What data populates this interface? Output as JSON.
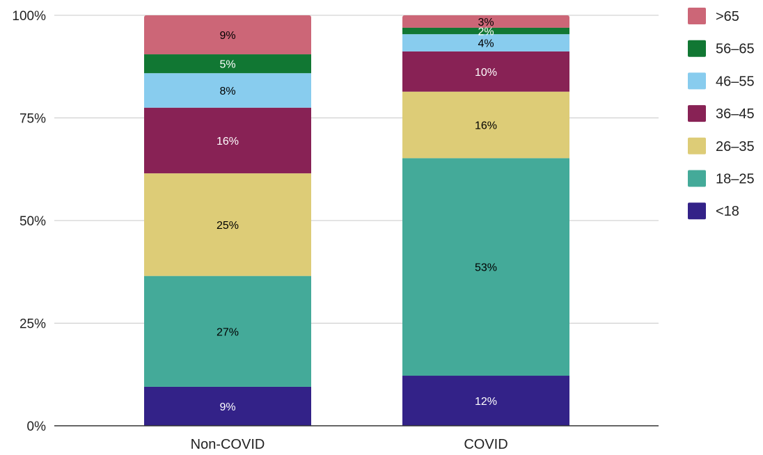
{
  "chart_data": {
    "type": "bar",
    "stacked": true,
    "normalized": true,
    "title": "",
    "xlabel": "",
    "ylabel": "",
    "ylim": [
      0,
      100
    ],
    "y_ticks": [
      "0%",
      "25%",
      "50%",
      "75%",
      "100%"
    ],
    "y_tick_values": [
      0,
      25,
      50,
      75,
      100
    ],
    "grid": true,
    "legend": "right",
    "categories": [
      "Non-COVID",
      "COVID"
    ],
    "series": [
      {
        "name": "<18",
        "color": "#332288",
        "label_color": "#ffffff",
        "values": [
          9.5,
          12.2
        ],
        "labels": [
          "9%",
          "12%"
        ]
      },
      {
        "name": "18–25",
        "color": "#44aa99",
        "label_color": "#000000",
        "values": [
          27.0,
          53.0
        ],
        "labels": [
          "27%",
          "53%"
        ]
      },
      {
        "name": "26–35",
        "color": "#ddcc77",
        "label_color": "#000000",
        "values": [
          25.0,
          16.2
        ],
        "labels": [
          "25%",
          "16%"
        ]
      },
      {
        "name": "36–45",
        "color": "#882255",
        "label_color": "#ffffff",
        "values": [
          16.0,
          9.8
        ],
        "labels": [
          "16%",
          "10%"
        ]
      },
      {
        "name": "46–55",
        "color": "#88ccee",
        "label_color": "#000000",
        "values": [
          8.4,
          4.2
        ],
        "labels": [
          "8%",
          "4%"
        ]
      },
      {
        "name": "56–65",
        "color": "#117733",
        "label_color": "#ffffff",
        "values": [
          4.6,
          1.6
        ],
        "labels": [
          "5%",
          "2%"
        ]
      },
      {
        "name": ">65",
        "color": "#cc6677",
        "label_color": "#000000",
        "values": [
          9.5,
          3.0
        ],
        "labels": [
          "9%",
          "3%"
        ]
      }
    ]
  }
}
